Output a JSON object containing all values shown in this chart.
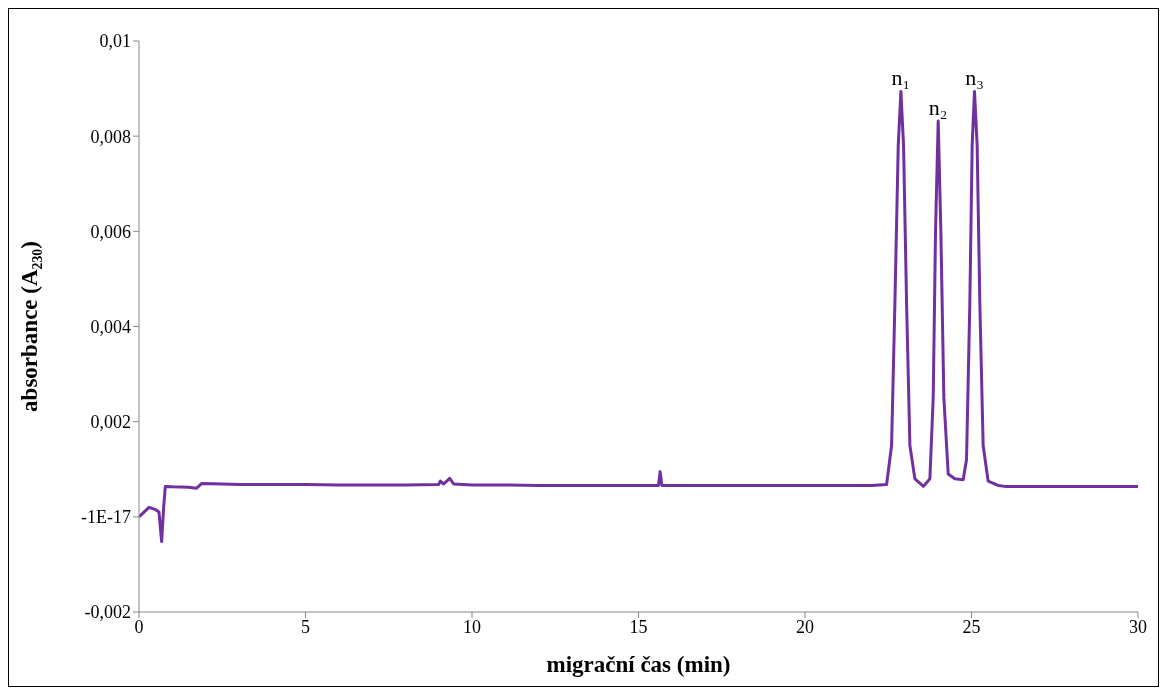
{
  "chart_data": {
    "type": "line",
    "xlabel": "migrační čas (min)",
    "ylabel": "absorbance (A₂₃₀)",
    "xlim": [
      0,
      30
    ],
    "xticks": [
      0,
      5,
      10,
      15,
      20,
      25,
      30
    ],
    "ylim": [
      -0.002,
      0.01
    ],
    "yticks": [
      {
        "value": -0.002,
        "label": "-0,002"
      },
      {
        "value": 0,
        "label": "-1E-17"
      },
      {
        "value": 0.002,
        "label": "0,002"
      },
      {
        "value": 0.004,
        "label": "0,004"
      },
      {
        "value": 0.006,
        "label": "0,006"
      },
      {
        "value": 0.008,
        "label": "0,008"
      },
      {
        "value": 0.01,
        "label": "0,01"
      }
    ],
    "color": "#7030a0",
    "x": [
      0,
      0.15,
      0.3,
      0.5,
      0.6,
      0.68,
      0.74,
      0.79,
      1.0,
      1.5,
      1.72,
      1.88,
      2.5,
      3,
      4,
      5,
      6,
      7,
      8,
      9,
      9.05,
      9.15,
      9.33,
      9.45,
      10,
      11,
      12,
      13,
      14,
      15,
      15.6,
      15.65,
      15.7,
      16,
      17,
      18,
      19,
      20,
      21,
      22,
      22.45,
      22.6,
      22.7,
      22.8,
      22.88,
      22.96,
      23.05,
      23.15,
      23.3,
      23.56,
      23.75,
      23.85,
      23.92,
      24.0,
      24.08,
      24.17,
      24.3,
      24.5,
      24.75,
      24.85,
      24.95,
      25.02,
      25.09,
      25.17,
      25.25,
      25.35,
      25.5,
      25.8,
      26,
      27,
      28,
      29,
      30
    ],
    "values": [
      0,
      0.0001,
      0.0002,
      0.00015,
      0.0001,
      -0.00052,
      0.0002,
      0.00064,
      0.00063,
      0.00062,
      0.0006,
      0.0007,
      0.00069,
      0.00068,
      0.00068,
      0.00068,
      0.00067,
      0.00067,
      0.00067,
      0.00068,
      0.00075,
      0.00069,
      0.00081,
      0.00069,
      0.00067,
      0.00067,
      0.00066,
      0.00066,
      0.00066,
      0.00066,
      0.00066,
      0.00095,
      0.00066,
      0.00066,
      0.00066,
      0.00066,
      0.00066,
      0.00066,
      0.00066,
      0.00066,
      0.00068,
      0.0015,
      0.0045,
      0.0078,
      0.00894,
      0.0078,
      0.0045,
      0.0015,
      0.0008,
      0.00064,
      0.0008,
      0.0025,
      0.006,
      0.00832,
      0.006,
      0.0025,
      0.0009,
      0.0008,
      0.00078,
      0.0012,
      0.0045,
      0.0078,
      0.00894,
      0.0078,
      0.0045,
      0.0015,
      0.00075,
      0.00066,
      0.00064,
      0.00064,
      0.00064,
      0.00064,
      0.00064
    ],
    "annotations": [
      {
        "text": "n₁",
        "x": 22.88,
        "y": 0.00894
      },
      {
        "text": "n₂",
        "x": 24.0,
        "y": 0.00832
      },
      {
        "text": "n₃",
        "x": 25.09,
        "y": 0.00894
      }
    ]
  }
}
